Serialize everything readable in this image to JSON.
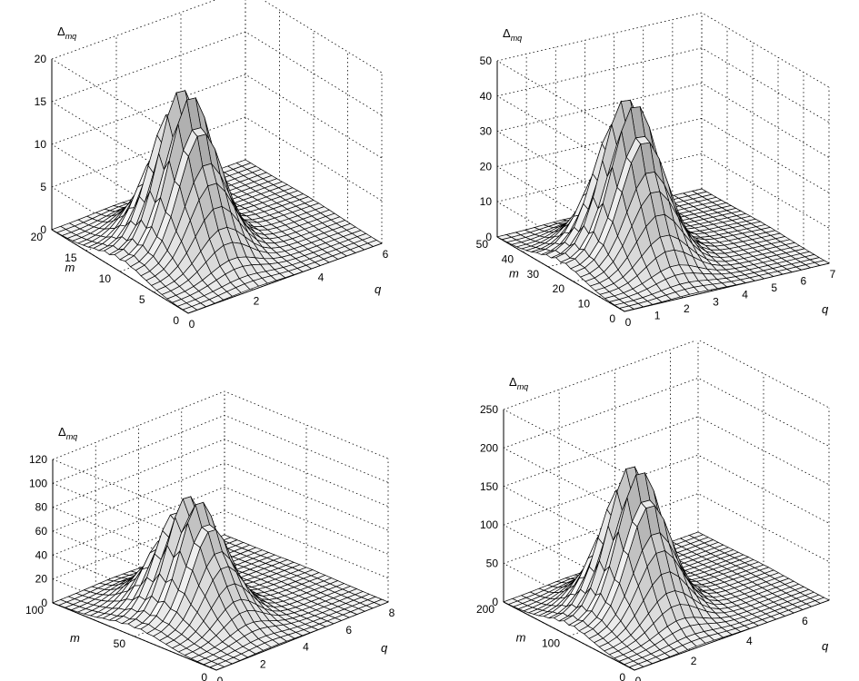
{
  "chart_data": [
    {
      "type": "surface",
      "title": "",
      "zlabel": "Δ",
      "zlabel_sub": "mq",
      "xlabel": "q",
      "ylabel": "m",
      "xlim": [
        0,
        6
      ],
      "ylim": [
        0,
        20
      ],
      "zlim": [
        0,
        20
      ],
      "grid": true,
      "x_ticks": [
        "0",
        "2",
        "4",
        "6"
      ],
      "y_ticks": [
        "0",
        "5",
        "10",
        "15",
        "20"
      ],
      "z_ticks": [
        "0",
        "5",
        "10",
        "15",
        "20"
      ],
      "peak_m": 10,
      "peak_height": 18
    },
    {
      "type": "surface",
      "title": "",
      "zlabel": "Δ",
      "zlabel_sub": "mq",
      "xlabel": "q",
      "ylabel": "m",
      "xlim": [
        0,
        7
      ],
      "ylim": [
        0,
        50
      ],
      "zlim": [
        0,
        50
      ],
      "grid": true,
      "x_ticks": [
        "0",
        "1",
        "2",
        "3",
        "4",
        "5",
        "6",
        "7"
      ],
      "y_ticks": [
        "0",
        "10",
        "20",
        "30",
        "40",
        "50"
      ],
      "z_ticks": [
        "0",
        "10",
        "20",
        "30",
        "40",
        "50"
      ],
      "peak_m": 25,
      "peak_height": 44
    },
    {
      "type": "surface",
      "title": "",
      "zlabel": "Δ",
      "zlabel_sub": "mq",
      "xlabel": "q",
      "ylabel": "m",
      "xlim": [
        0,
        8
      ],
      "ylim": [
        0,
        100
      ],
      "zlim": [
        0,
        120
      ],
      "grid": true,
      "x_ticks": [
        "0",
        "2",
        "4",
        "6",
        "8"
      ],
      "y_ticks": [
        "0",
        "50",
        "100"
      ],
      "z_ticks": [
        "0",
        "20",
        "40",
        "60",
        "80",
        "100",
        "120"
      ],
      "peak_m": 50,
      "peak_height": 95
    },
    {
      "type": "surface",
      "title": "",
      "zlabel": "Δ",
      "zlabel_sub": "mq",
      "xlabel": "q",
      "ylabel": "m",
      "xlim": [
        0,
        7
      ],
      "ylim": [
        0,
        200
      ],
      "zlim": [
        0,
        250
      ],
      "grid": true,
      "x_ticks": [
        "0",
        "2",
        "4",
        "6"
      ],
      "y_ticks": [
        "0",
        "100",
        "200"
      ],
      "z_ticks": [
        "0",
        "50",
        "100",
        "150",
        "200",
        "250"
      ],
      "peak_m": 100,
      "peak_height": 185
    }
  ]
}
